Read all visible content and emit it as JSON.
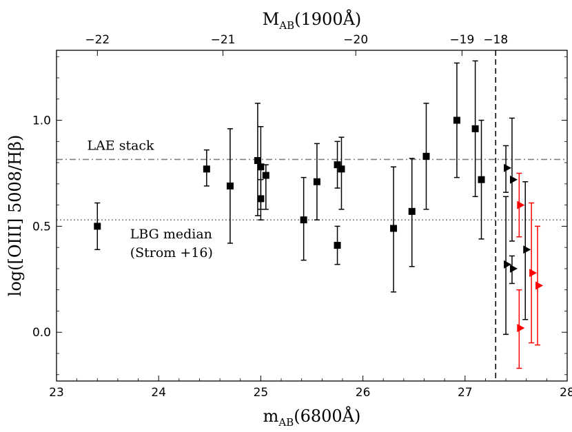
{
  "chart_data": {
    "type": "scatter",
    "xlabel": "m_AB(6800Å)",
    "xlabel_main": "m",
    "xlabel_sub": "AB",
    "xlabel_rest": "(6800Å)",
    "top_xlabel": "M_AB(1900Å)",
    "top_xlabel_main": "M",
    "top_xlabel_sub": "AB",
    "top_xlabel_rest": "(1900Å)",
    "ylabel": "log([OIII] 5008/Hβ)",
    "xlim": [
      23,
      28
    ],
    "ylim": [
      -0.23,
      1.33
    ],
    "x_ticks": [
      23,
      24,
      25,
      26,
      27,
      28
    ],
    "x_tick_labels": [
      "23",
      "24",
      "25",
      "26",
      "27",
      "28"
    ],
    "y_ticks": [
      0.0,
      0.5,
      1.0
    ],
    "y_tick_labels": [
      "0.0",
      "0.5",
      "1.0"
    ],
    "top_ticks": [
      -22,
      -21,
      -20,
      -19,
      -18
    ],
    "top_tick_labels": [
      "−22",
      "−21",
      "−20",
      "−19",
      "−18"
    ],
    "top_tick_positions_m": [
      23.4,
      24.63,
      25.93,
      26.97,
      27.3
    ],
    "vline_x": 27.3,
    "hlines": [
      {
        "name": "LAE stack",
        "y": 0.815,
        "style": "dashdot",
        "label_lines": [
          "LAE stack"
        ]
      },
      {
        "name": "LBG median (Strom+16)",
        "y": 0.53,
        "style": "dotted",
        "label_lines": [
          "LBG median",
          "(Strom +16)"
        ]
      }
    ],
    "series": [
      {
        "name": "detections",
        "marker": "square",
        "color": "#000000",
        "points": [
          {
            "x": 23.4,
            "y": 0.5,
            "lo": 0.39,
            "hi": 0.61
          },
          {
            "x": 24.47,
            "y": 0.77,
            "lo": 0.69,
            "hi": 0.86
          },
          {
            "x": 24.7,
            "y": 0.69,
            "lo": 0.42,
            "hi": 0.96
          },
          {
            "x": 24.97,
            "y": 0.81,
            "lo": 0.55,
            "hi": 1.08
          },
          {
            "x": 25.0,
            "y": 0.78,
            "lo": 0.58,
            "hi": 0.97
          },
          {
            "x": 25.0,
            "y": 0.63,
            "lo": 0.53,
            "hi": 0.72
          },
          {
            "x": 25.05,
            "y": 0.74,
            "lo": 0.58,
            "hi": 0.79
          },
          {
            "x": 25.42,
            "y": 0.53,
            "lo": 0.34,
            "hi": 0.73
          },
          {
            "x": 25.55,
            "y": 0.71,
            "lo": 0.53,
            "hi": 0.89
          },
          {
            "x": 25.75,
            "y": 0.79,
            "lo": 0.68,
            "hi": 0.9
          },
          {
            "x": 25.79,
            "y": 0.77,
            "lo": 0.58,
            "hi": 0.92
          },
          {
            "x": 25.75,
            "y": 0.41,
            "lo": 0.32,
            "hi": 0.5
          },
          {
            "x": 26.3,
            "y": 0.49,
            "lo": 0.19,
            "hi": 0.78
          },
          {
            "x": 26.48,
            "y": 0.57,
            "lo": 0.31,
            "hi": 0.82
          },
          {
            "x": 26.62,
            "y": 0.83,
            "lo": 0.58,
            "hi": 1.08
          },
          {
            "x": 26.92,
            "y": 1.0,
            "lo": 0.73,
            "hi": 1.27
          },
          {
            "x": 27.1,
            "y": 0.96,
            "lo": 0.64,
            "hi": 1.28
          },
          {
            "x": 27.16,
            "y": 0.72,
            "lo": 0.44,
            "hi": 1.0
          }
        ]
      },
      {
        "name": "limits-black",
        "marker": "triangle-right",
        "color": "#000000",
        "points": [
          {
            "x": 27.4,
            "y": 0.775,
            "lo": 0.66,
            "hi": 0.88
          },
          {
            "x": 27.46,
            "y": 0.72,
            "lo": 0.43,
            "hi": 1.01
          },
          {
            "x": 27.4,
            "y": 0.32,
            "lo": -0.01,
            "hi": 0.64
          },
          {
            "x": 27.46,
            "y": 0.3,
            "lo": 0.23,
            "hi": 0.36
          },
          {
            "x": 27.59,
            "y": 0.39,
            "lo": 0.06,
            "hi": 0.71
          }
        ]
      },
      {
        "name": "limits-red",
        "marker": "triangle-right",
        "color": "#ff0000",
        "points": [
          {
            "x": 27.53,
            "y": 0.6,
            "lo": 0.45,
            "hi": 0.75
          },
          {
            "x": 27.53,
            "y": 0.02,
            "lo": -0.17,
            "hi": 0.2
          },
          {
            "x": 27.65,
            "y": 0.28,
            "lo": -0.05,
            "hi": 0.61
          },
          {
            "x": 27.71,
            "y": 0.22,
            "lo": -0.06,
            "hi": 0.5
          }
        ]
      }
    ]
  }
}
